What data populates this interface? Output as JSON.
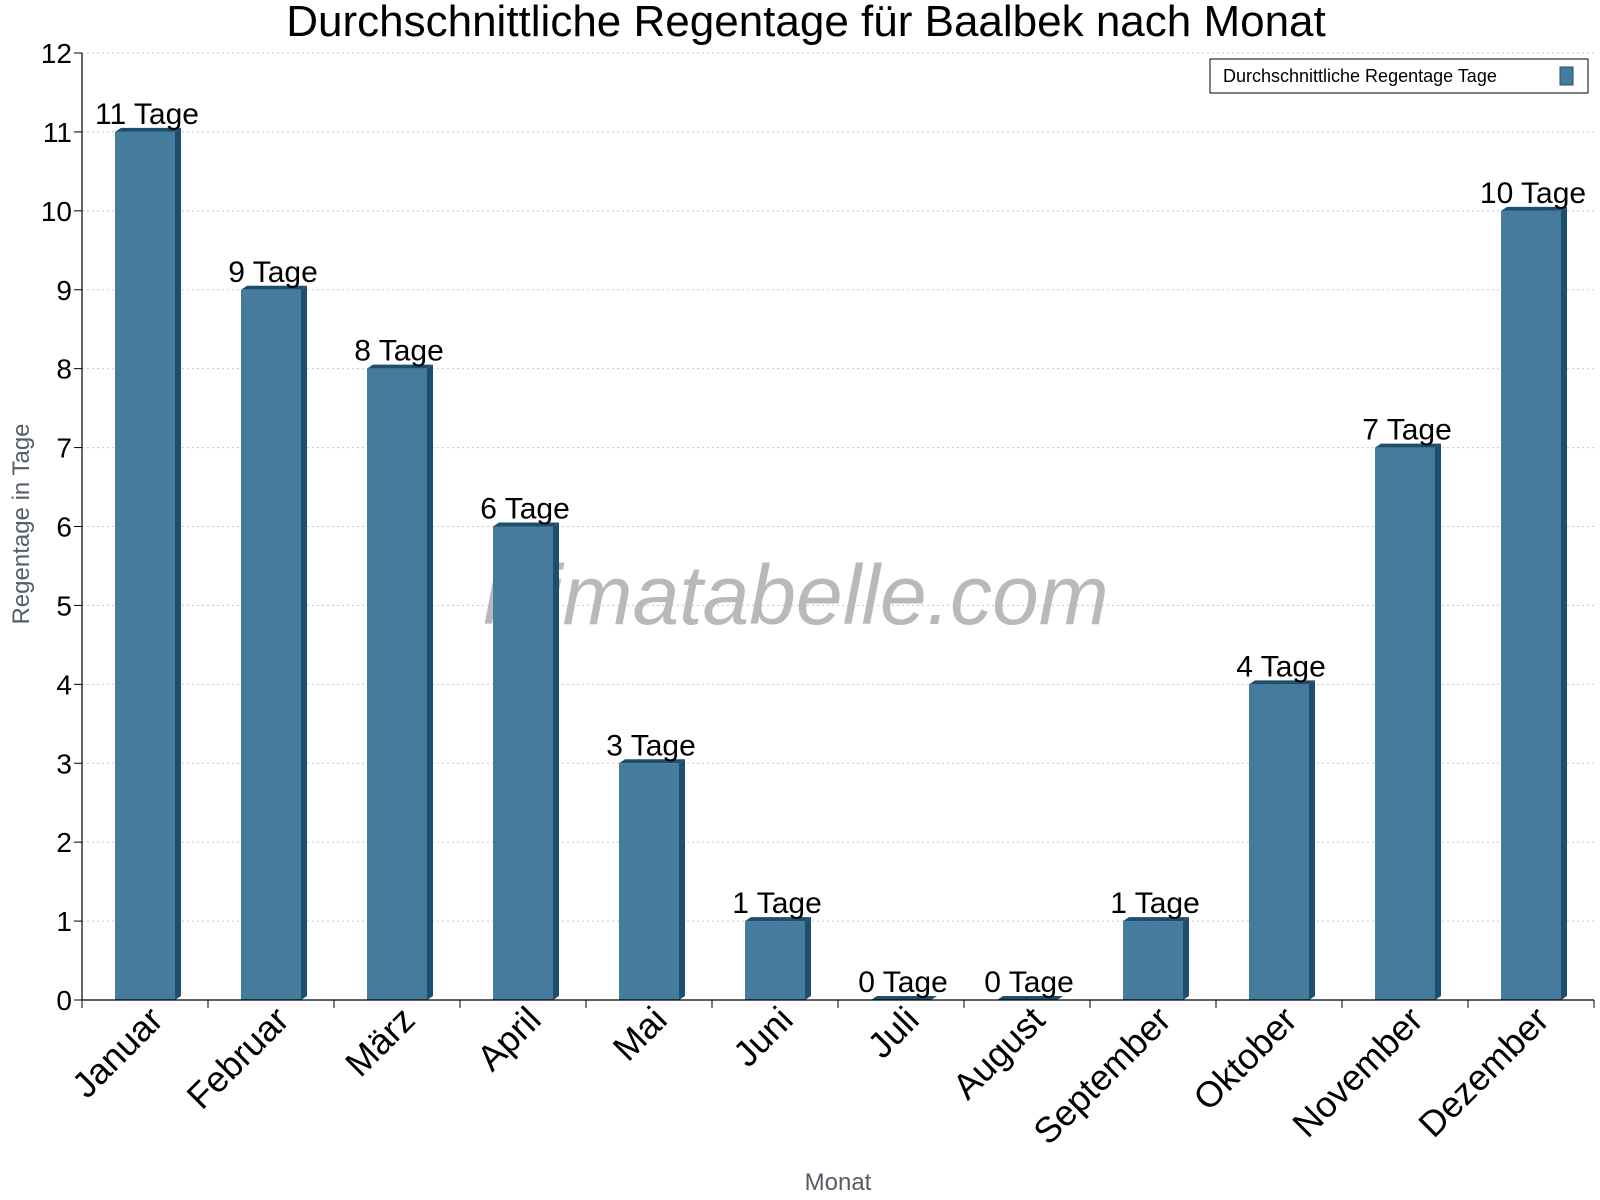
{
  "chart_data": {
    "type": "bar",
    "title": "Durchschnittliche Regentage für Baalbek nach Monat",
    "xlabel": "Monat",
    "ylabel": "Regentage in Tage",
    "ylim": [
      0,
      12
    ],
    "yticks": [
      "0",
      "1",
      "2",
      "3",
      "4",
      "5",
      "6",
      "7",
      "8",
      "9",
      "10",
      "11",
      "12"
    ],
    "grid": true,
    "legend_position": "top-right",
    "categories": [
      "Januar",
      "Februar",
      "März",
      "April",
      "Mai",
      "Juni",
      "Juli",
      "August",
      "September",
      "Oktober",
      "November",
      "Dezember"
    ],
    "series": [
      {
        "name": "Durchschnittliche Regentage Tage",
        "values": [
          11,
          9,
          8,
          6,
          3,
          1,
          0,
          0,
          1,
          4,
          7,
          10
        ],
        "labels": [
          "11 Tage",
          "9 Tage",
          "8 Tage",
          "6 Tage",
          "3 Tage",
          "1 Tage",
          "0 Tage",
          "0 Tage",
          "1 Tage",
          "4 Tage",
          "7 Tage",
          "10 Tage"
        ],
        "color": "#457b9d",
        "edge_color": "#1d4e6e"
      }
    ]
  },
  "watermark": "klimatabelle.com"
}
